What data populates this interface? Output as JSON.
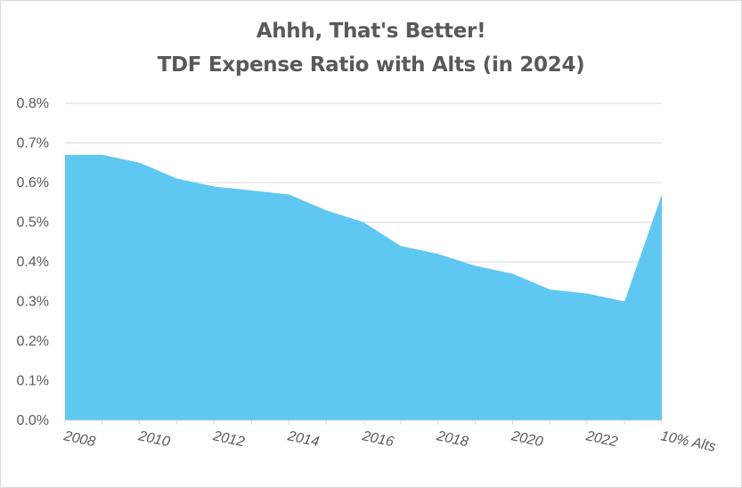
{
  "chart_data": {
    "type": "area",
    "title": "Ahhh, That's Better!",
    "subtitle": "TDF Expense Ratio with Alts (in 2024)",
    "xlabel": "",
    "ylabel": "",
    "x": [
      "2008",
      "2009",
      "2010",
      "2011",
      "2012",
      "2013",
      "2014",
      "2015",
      "2016",
      "2017",
      "2018",
      "2019",
      "2020",
      "2021",
      "2022",
      "2023",
      "10% Alts"
    ],
    "x_tick_labels": [
      "2008",
      "2010",
      "2012",
      "2014",
      "2016",
      "2018",
      "2020",
      "2022",
      "10% Alts"
    ],
    "y_tick_labels": [
      "0.0%",
      "0.1%",
      "0.2%",
      "0.3%",
      "0.4%",
      "0.5%",
      "0.6%",
      "0.7%",
      "0.8%"
    ],
    "series": [
      {
        "values": [
          0.67,
          0.67,
          0.65,
          0.61,
          0.59,
          0.58,
          0.57,
          0.53,
          0.5,
          0.44,
          0.42,
          0.39,
          0.37,
          0.33,
          0.32,
          0.3,
          0.57
        ],
        "color": "#5ec8f2"
      }
    ],
    "ylim": [
      0,
      0.8
    ],
    "y_unit": "%",
    "grid": true,
    "legend": "none",
    "colors": {
      "area": "#5ec8f2",
      "grid": "#d9d9d9",
      "text": "#595959"
    }
  }
}
